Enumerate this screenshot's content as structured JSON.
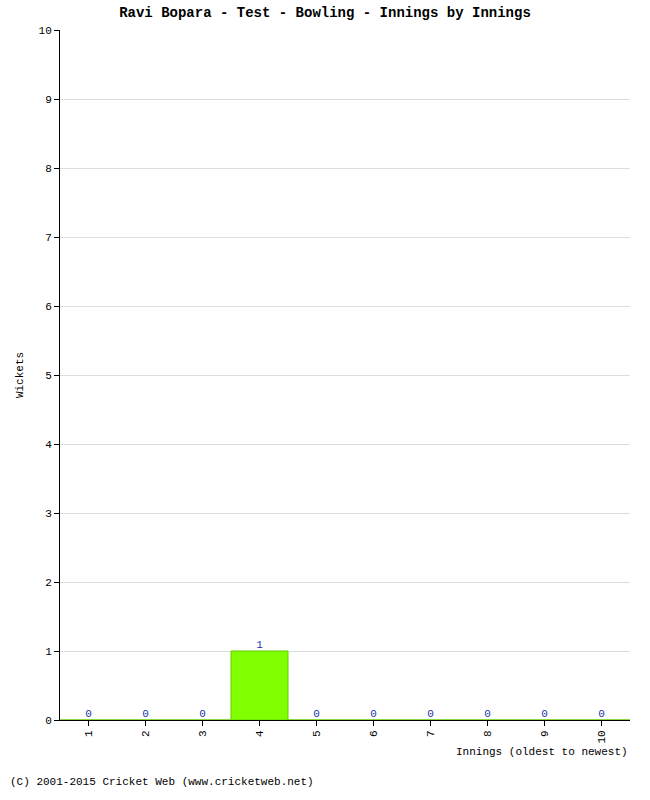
{
  "chart_data": {
    "type": "bar",
    "title": "Ravi Bopara - Test - Bowling - Innings by Innings",
    "x_label": "Innings (oldest to newest)",
    "y_label": "Wickets",
    "annotations": [
      "(C) 2001-2015 Cricket Web (www.cricketweb.net)"
    ],
    "categories": [
      "1",
      "2",
      "3",
      "4",
      "5",
      "6",
      "7",
      "8",
      "9",
      "10"
    ],
    "values": [
      0,
      0,
      0,
      1,
      0,
      0,
      0,
      0,
      0,
      0
    ],
    "color": "#80ff00",
    "ylim": [
      0,
      10
    ],
    "yticks": [
      0,
      1,
      2,
      3,
      4,
      5,
      6,
      7,
      8,
      9,
      10
    ],
    "grid": true,
    "data_labels": true
  }
}
